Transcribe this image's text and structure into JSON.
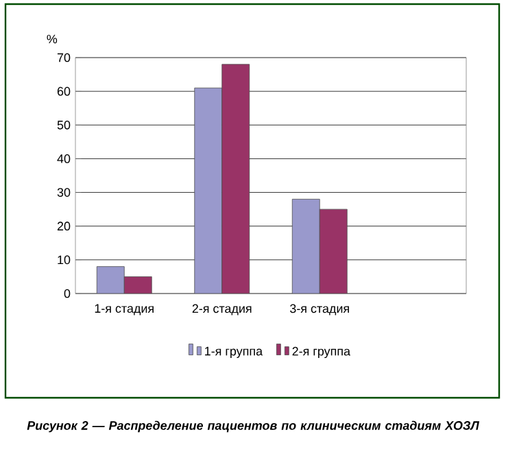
{
  "chart_data": {
    "type": "bar",
    "title": "Рисунок 2 — Распределение пациентов по клиническим стадиям ХОЗЛ",
    "ylabel": "%",
    "categories": [
      "1-я стадия",
      "2-я стадия",
      "3-я стадия",
      null
    ],
    "series": [
      {
        "name": "1-я группа",
        "color": "#9999cc",
        "values": [
          8,
          61,
          28,
          null
        ]
      },
      {
        "name": "2-я группа",
        "color": "#993366",
        "values": [
          5,
          68,
          25,
          null
        ]
      }
    ],
    "ylim": [
      0,
      70
    ],
    "yticks": [
      0,
      10,
      20,
      30,
      40,
      50,
      60,
      70
    ],
    "grid": "y",
    "legend": "bottom"
  }
}
